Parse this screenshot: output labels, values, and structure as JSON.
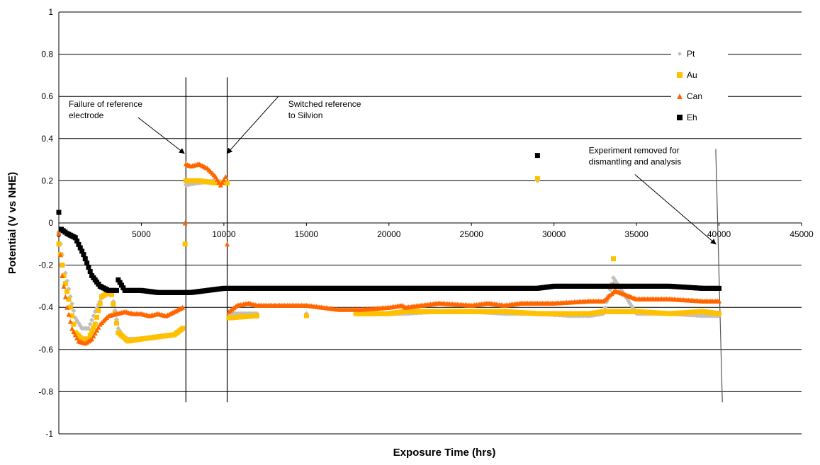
{
  "chart_data": {
    "type": "scatter",
    "title": "",
    "xlabel": "Exposure Time (hrs)",
    "ylabel": "Potential (V vs NHE)",
    "xlim": [
      0,
      45000
    ],
    "ylim": [
      -1,
      1
    ],
    "x_ticks": [
      "0",
      "5000",
      "10000",
      "15000",
      "20000",
      "25000",
      "30000",
      "35000",
      "40000",
      "45000"
    ],
    "y_ticks": [
      "1",
      "0.8",
      "0.6",
      "0.4",
      "0.2",
      "0",
      "-0.2",
      "-0.4",
      "-0.6",
      "-0.8",
      "-1"
    ],
    "grid": "horizontal",
    "legend_position": "top-right",
    "series": [
      {
        "name": "Pt",
        "color": "#c0c0c0",
        "marker": "diamond",
        "points": [
          [
            0,
            -0.05
          ],
          [
            300,
            -0.2
          ],
          [
            700,
            -0.35
          ],
          [
            1000,
            -0.45
          ],
          [
            1400,
            -0.5
          ],
          [
            1800,
            -0.5
          ],
          [
            2200,
            -0.42
          ],
          [
            2700,
            -0.34
          ],
          [
            3200,
            -0.33
          ],
          [
            3600,
            -0.5
          ],
          [
            4000,
            -0.55
          ],
          [
            5000,
            -0.55
          ],
          [
            6000,
            -0.54
          ],
          [
            7000,
            -0.53
          ],
          [
            7500,
            -0.5
          ],
          [
            7650,
            -0.1
          ],
          [
            7700,
            0.18
          ],
          [
            8500,
            0.19
          ],
          [
            9500,
            0.2
          ],
          [
            10200,
            0.19
          ],
          [
            10300,
            -0.43
          ],
          [
            12000,
            -0.43
          ],
          [
            15000,
            -0.43
          ],
          [
            18000,
            -0.43
          ],
          [
            20000,
            -0.43
          ],
          [
            21000,
            -0.43
          ],
          [
            23000,
            -0.42
          ],
          [
            25000,
            -0.42
          ],
          [
            27000,
            -0.43
          ],
          [
            29000,
            -0.43
          ],
          [
            31000,
            -0.44
          ],
          [
            32200,
            -0.44
          ],
          [
            33000,
            -0.43
          ],
          [
            33600,
            -0.26
          ],
          [
            35000,
            -0.43
          ],
          [
            37000,
            -0.43
          ],
          [
            39000,
            -0.44
          ],
          [
            40000,
            -0.44
          ],
          [
            29000,
            0.2
          ]
        ]
      },
      {
        "name": "Au",
        "color": "#ffc000",
        "marker": "square",
        "points": [
          [
            0,
            -0.1
          ],
          [
            300,
            -0.25
          ],
          [
            700,
            -0.4
          ],
          [
            1000,
            -0.52
          ],
          [
            1400,
            -0.55
          ],
          [
            1800,
            -0.55
          ],
          [
            2200,
            -0.48
          ],
          [
            2600,
            -0.35
          ],
          [
            3000,
            -0.33
          ],
          [
            3200,
            -0.34
          ],
          [
            3600,
            -0.52
          ],
          [
            4200,
            -0.56
          ],
          [
            5000,
            -0.55
          ],
          [
            6000,
            -0.54
          ],
          [
            7000,
            -0.53
          ],
          [
            7500,
            -0.5
          ],
          [
            7650,
            -0.1
          ],
          [
            7700,
            0.2
          ],
          [
            8500,
            0.2
          ],
          [
            9500,
            0.19
          ],
          [
            10200,
            0.19
          ],
          [
            10300,
            -0.45
          ],
          [
            12000,
            -0.44
          ],
          [
            15000,
            -0.44
          ],
          [
            18000,
            -0.43
          ],
          [
            20000,
            -0.43
          ],
          [
            21000,
            -0.42
          ],
          [
            23000,
            -0.42
          ],
          [
            25000,
            -0.42
          ],
          [
            27000,
            -0.42
          ],
          [
            29000,
            -0.43
          ],
          [
            31000,
            -0.43
          ],
          [
            32200,
            -0.43
          ],
          [
            33000,
            -0.42
          ],
          [
            35000,
            -0.42
          ],
          [
            37000,
            -0.43
          ],
          [
            39000,
            -0.42
          ],
          [
            40000,
            -0.43
          ],
          [
            29000,
            0.21
          ],
          [
            33600,
            -0.17
          ]
        ]
      },
      {
        "name": "Can",
        "color": "#ff6600",
        "marker": "triangle",
        "points": [
          [
            0,
            -0.05
          ],
          [
            200,
            -0.25
          ],
          [
            500,
            -0.4
          ],
          [
            800,
            -0.5
          ],
          [
            1200,
            -0.56
          ],
          [
            1600,
            -0.57
          ],
          [
            2000,
            -0.55
          ],
          [
            2500,
            -0.48
          ],
          [
            3000,
            -0.44
          ],
          [
            3500,
            -0.43
          ],
          [
            4000,
            -0.42
          ],
          [
            4500,
            -0.43
          ],
          [
            5000,
            -0.43
          ],
          [
            5500,
            -0.44
          ],
          [
            6000,
            -0.43
          ],
          [
            6500,
            -0.44
          ],
          [
            7000,
            -0.42
          ],
          [
            7500,
            -0.4
          ],
          [
            7650,
            0.0
          ],
          [
            7700,
            0.28
          ],
          [
            8000,
            0.27
          ],
          [
            8500,
            0.28
          ],
          [
            9000,
            0.26
          ],
          [
            9500,
            0.22
          ],
          [
            9800,
            0.18
          ],
          [
            10100,
            0.22
          ],
          [
            10300,
            -0.42
          ],
          [
            10800,
            -0.39
          ],
          [
            11500,
            -0.38
          ],
          [
            12000,
            -0.39
          ],
          [
            13000,
            -0.39
          ],
          [
            15000,
            -0.39
          ],
          [
            16000,
            -0.4
          ],
          [
            17000,
            -0.41
          ],
          [
            18300,
            -0.41
          ],
          [
            20000,
            -0.4
          ],
          [
            20800,
            -0.39
          ],
          [
            21000,
            -0.4
          ],
          [
            23000,
            -0.38
          ],
          [
            25000,
            -0.39
          ],
          [
            26000,
            -0.38
          ],
          [
            27000,
            -0.39
          ],
          [
            28000,
            -0.38
          ],
          [
            29000,
            -0.38
          ],
          [
            30000,
            -0.38
          ],
          [
            32200,
            -0.37
          ],
          [
            33000,
            -0.37
          ],
          [
            33700,
            -0.32
          ],
          [
            35000,
            -0.36
          ],
          [
            37000,
            -0.36
          ],
          [
            39000,
            -0.37
          ],
          [
            40000,
            -0.37
          ],
          [
            33600,
            -0.29
          ]
        ]
      },
      {
        "name": "Eh",
        "color": "#000000",
        "marker": "square",
        "points": [
          [
            0,
            0.05
          ],
          [
            150,
            -0.03
          ],
          [
            500,
            -0.05
          ],
          [
            1000,
            -0.07
          ],
          [
            1500,
            -0.15
          ],
          [
            2000,
            -0.25
          ],
          [
            2500,
            -0.3
          ],
          [
            3000,
            -0.32
          ],
          [
            3500,
            -0.32
          ],
          [
            3600,
            -0.27
          ],
          [
            4000,
            -0.32
          ],
          [
            5000,
            -0.32
          ],
          [
            6000,
            -0.33
          ],
          [
            7000,
            -0.33
          ],
          [
            7500,
            -0.33
          ],
          [
            8000,
            -0.33
          ],
          [
            9000,
            -0.32
          ],
          [
            10000,
            -0.31
          ],
          [
            11500,
            -0.31
          ],
          [
            12000,
            -0.31
          ],
          [
            14000,
            -0.31
          ],
          [
            16000,
            -0.31
          ],
          [
            18300,
            -0.31
          ],
          [
            19500,
            -0.31
          ],
          [
            20300,
            -0.31
          ],
          [
            21000,
            -0.31
          ],
          [
            23000,
            -0.31
          ],
          [
            25000,
            -0.31
          ],
          [
            27000,
            -0.31
          ],
          [
            29000,
            -0.31
          ],
          [
            30000,
            -0.3
          ],
          [
            32200,
            -0.3
          ],
          [
            33000,
            -0.3
          ],
          [
            35000,
            -0.3
          ],
          [
            37000,
            -0.3
          ],
          [
            39000,
            -0.31
          ],
          [
            40000,
            -0.31
          ],
          [
            29000,
            0.32
          ]
        ]
      }
    ],
    "vertical_lines": [
      {
        "x": 7700,
        "y_from": 0.69,
        "y_to": -0.85,
        "color": "#000000"
      },
      {
        "x": 10200,
        "y_from": 0.69,
        "y_to": -0.85,
        "color": "#000000"
      },
      {
        "x_from": 39800,
        "y_from": 0.35,
        "x_to": 40200,
        "y_to": -0.85,
        "color": "#555555"
      }
    ],
    "annotations": [
      {
        "text": [
          "Failure of reference",
          "electrode"
        ],
        "text_x": 600,
        "text_y": 0.55,
        "arrow_from": [
          4800,
          0.5
        ],
        "arrow_to": [
          7600,
          0.33
        ]
      },
      {
        "text": [
          "Switched reference",
          "to Silvion"
        ],
        "text_x": 13900,
        "text_y": 0.55,
        "arrow_from": [
          13300,
          0.6
        ],
        "arrow_to": [
          10200,
          0.33
        ]
      },
      {
        "text": [
          "Experiment removed for",
          "dismantling and analysis"
        ],
        "text_x": 32100,
        "text_y": 0.33,
        "arrow_from": [
          34900,
          0.23
        ],
        "arrow_to": [
          39800,
          -0.1
        ]
      }
    ]
  }
}
